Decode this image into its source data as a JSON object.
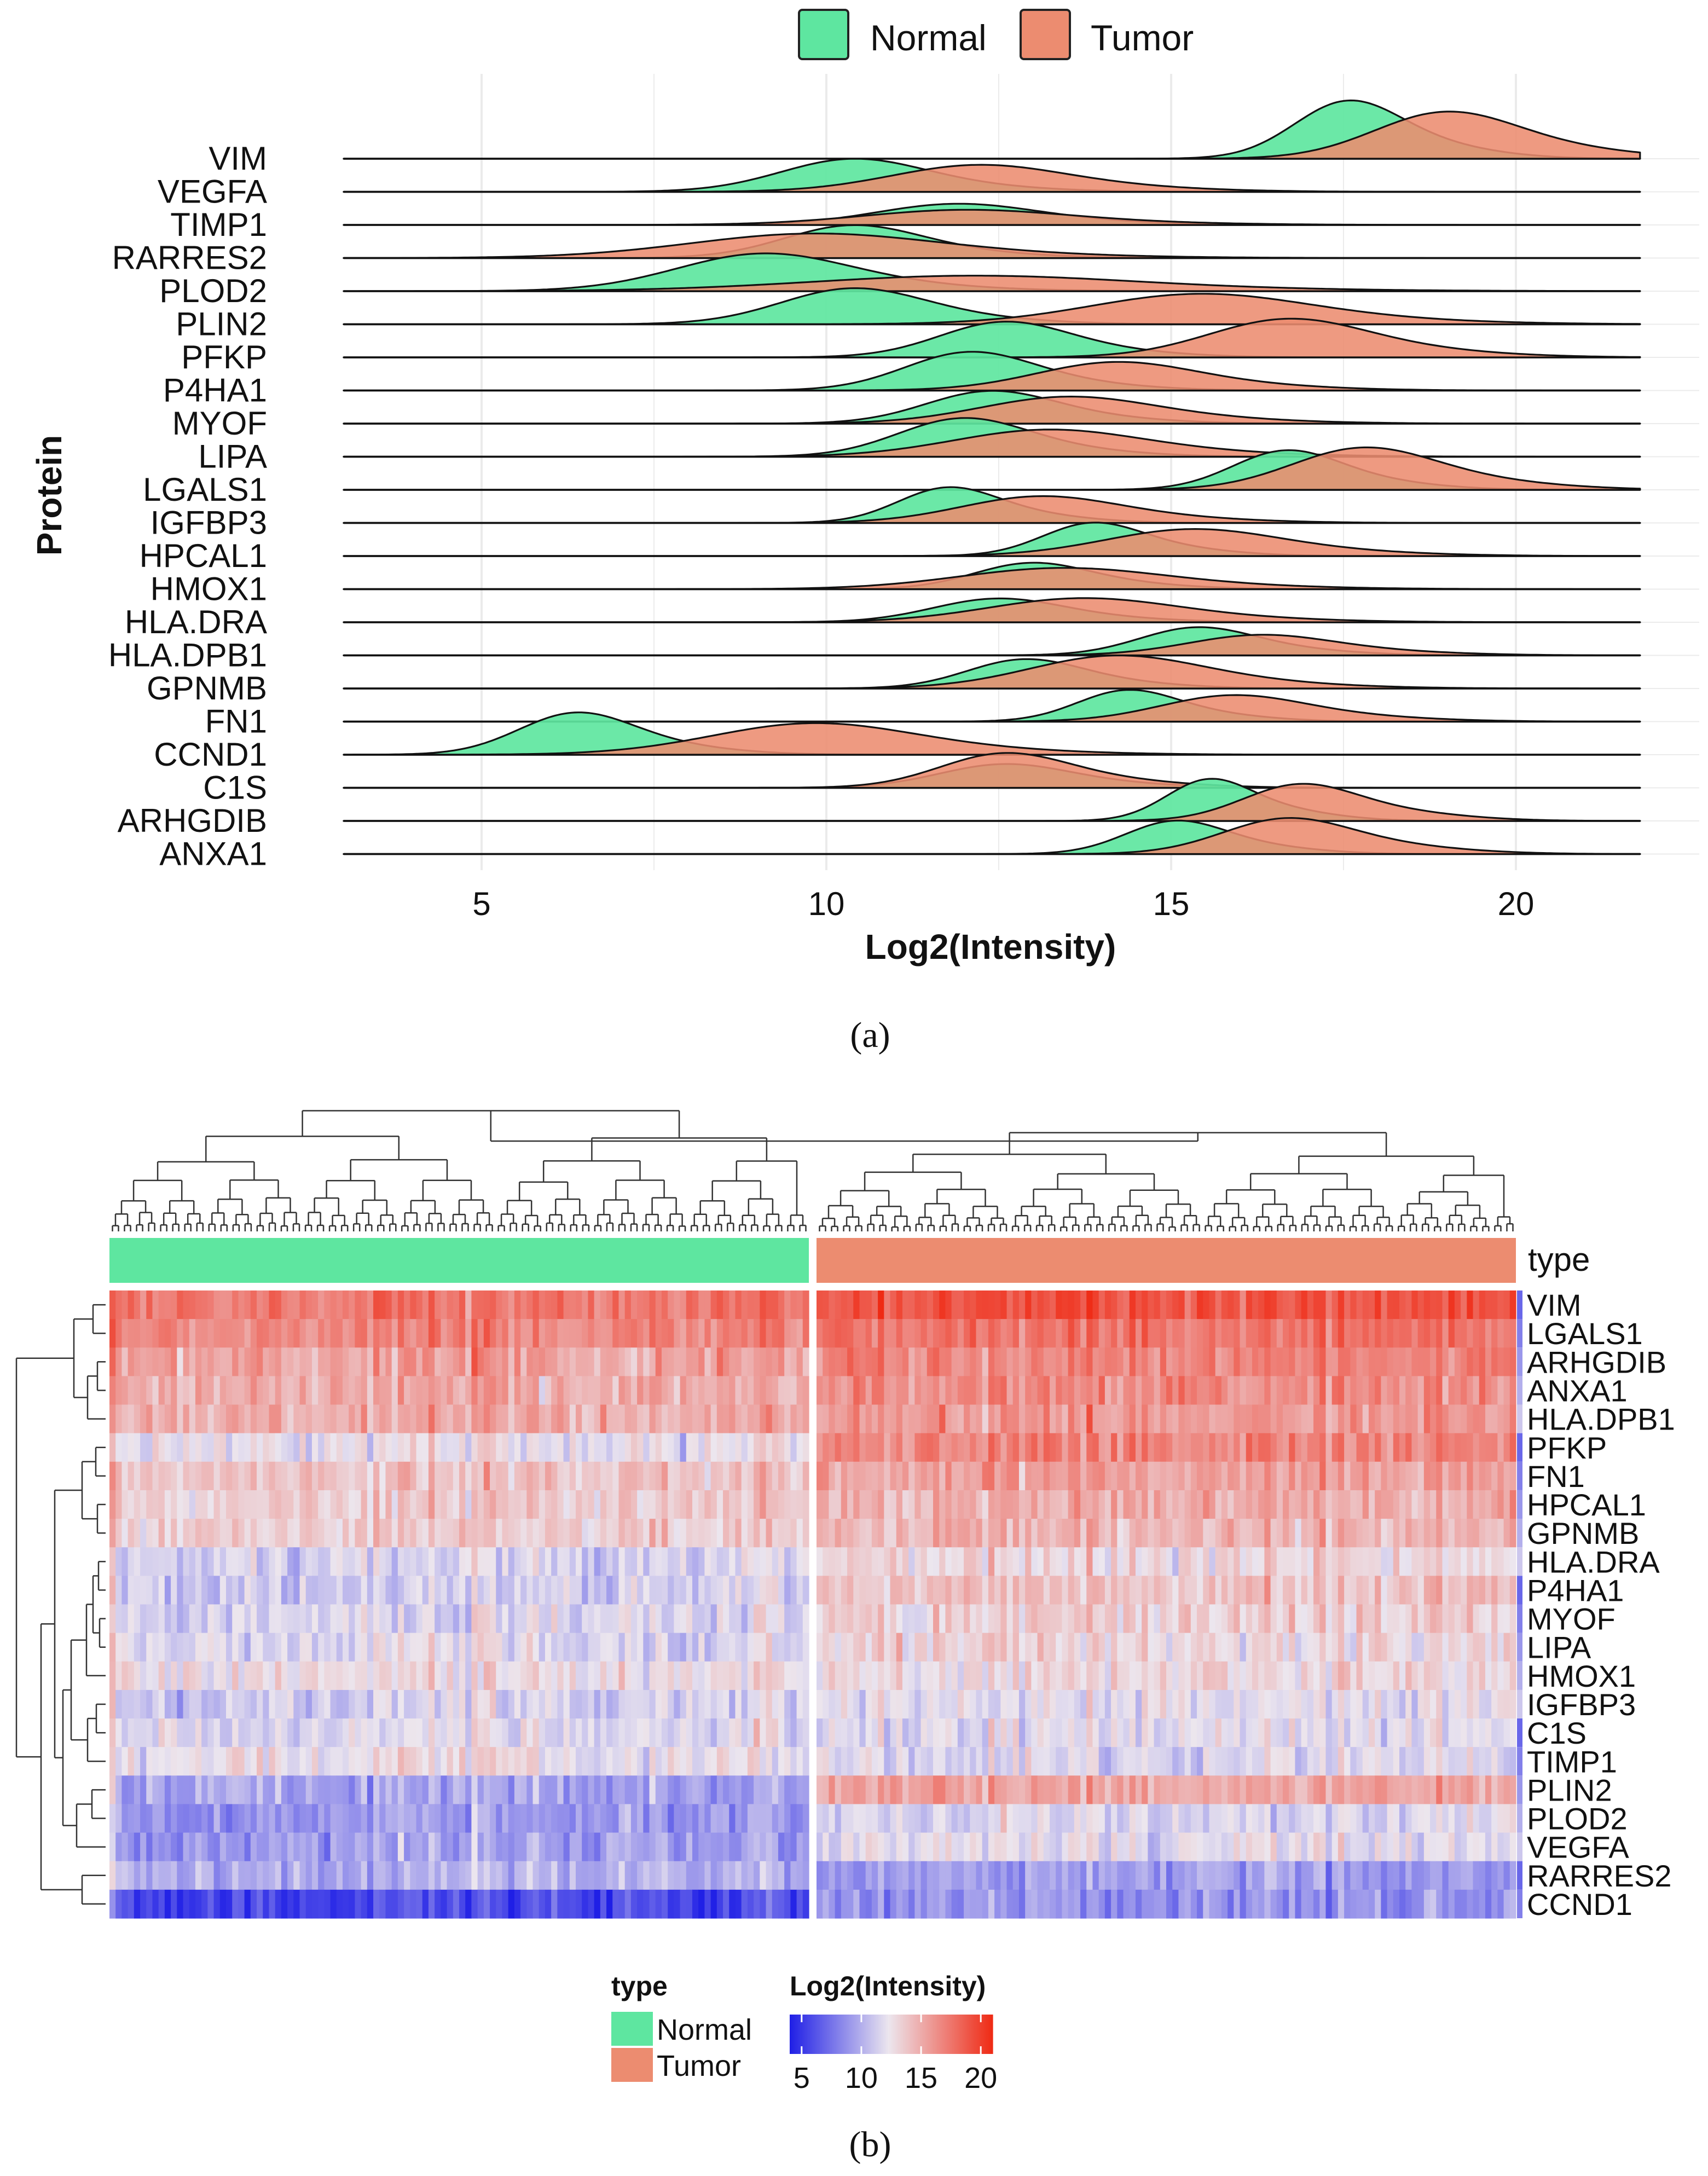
{
  "colors": {
    "normal": "#5ee6a0",
    "tumor": "#ec8c70",
    "heat_low": "#1f1fe6",
    "heat_mid": "#ece6ee",
    "heat_high": "#ef2a14"
  },
  "legend_top": {
    "items": [
      "Normal",
      "Tumor"
    ]
  },
  "chart_data": [
    {
      "type": "ridgeline",
      "caption": "(a)",
      "xlabel": "Log2(Intensity)",
      "ylabel": "Protein",
      "xlim": [
        3,
        21.8
      ],
      "xticks": [
        "5",
        "10",
        "15",
        "20"
      ],
      "xtick_values": [
        5,
        10,
        15,
        20
      ],
      "grid": true,
      "legend": "top-center",
      "proteins": [
        "VIM",
        "VEGFA",
        "TIMP1",
        "RARRES2",
        "PLOD2",
        "PLIN2",
        "PFKP",
        "P4HA1",
        "MYOF",
        "LIPA",
        "LGALS1",
        "IGFBP3",
        "HPCAL1",
        "HMOX1",
        "HLA.DRA",
        "HLA.DPB1",
        "GPNMB",
        "FN1",
        "CCND1",
        "C1S",
        "ARHGDIB",
        "ANXA1"
      ],
      "series": [
        {
          "name": "Normal",
          "peaks": [
            [
              17.5,
              0.75,
              1.0
            ],
            [
              10.3,
              1.0,
              0.55
            ],
            [
              11.8,
              1.1,
              0.35
            ],
            [
              10.3,
              0.95,
              0.55
            ],
            [
              9.0,
              1.2,
              0.62
            ],
            [
              10.3,
              1.0,
              0.6
            ],
            [
              12.5,
              0.9,
              0.6
            ],
            [
              12.0,
              0.9,
              0.65
            ],
            [
              12.3,
              0.9,
              0.55
            ],
            [
              11.9,
              0.9,
              0.65
            ],
            [
              16.6,
              0.75,
              0.68
            ],
            [
              11.7,
              0.7,
              0.62
            ],
            [
              13.8,
              0.7,
              0.58
            ],
            [
              12.9,
              0.8,
              0.45
            ],
            [
              12.4,
              0.9,
              0.4
            ],
            [
              15.3,
              0.8,
              0.48
            ],
            [
              12.8,
              0.8,
              0.5
            ],
            [
              14.3,
              0.7,
              0.55
            ],
            [
              6.3,
              0.8,
              0.72
            ],
            [
              12.5,
              0.9,
              0.4
            ],
            [
              15.5,
              0.6,
              0.75
            ],
            [
              15.0,
              0.7,
              0.58
            ]
          ]
        },
        {
          "name": "Tumor",
          "peaks": [
            [
              18.9,
              1.0,
              0.8
            ],
            [
              12.1,
              1.2,
              0.45
            ],
            [
              11.9,
              1.4,
              0.25
            ],
            [
              9.7,
              1.7,
              0.4
            ],
            [
              12.0,
              2.2,
              0.25
            ],
            [
              15.3,
              1.5,
              0.5
            ],
            [
              16.6,
              1.1,
              0.65
            ],
            [
              14.1,
              1.1,
              0.48
            ],
            [
              13.4,
              1.2,
              0.45
            ],
            [
              13.1,
              1.3,
              0.45
            ],
            [
              17.7,
              1.0,
              0.72
            ],
            [
              13.0,
              1.1,
              0.45
            ],
            [
              15.2,
              1.2,
              0.45
            ],
            [
              13.3,
              1.4,
              0.35
            ],
            [
              13.6,
              1.3,
              0.4
            ],
            [
              16.2,
              1.0,
              0.35
            ],
            [
              14.1,
              1.2,
              0.55
            ],
            [
              15.8,
              1.0,
              0.45
            ],
            [
              9.7,
              1.4,
              0.52
            ],
            [
              12.5,
              0.9,
              0.6
            ],
            [
              16.8,
              0.8,
              0.65
            ],
            [
              16.6,
              0.9,
              0.62
            ]
          ]
        }
      ]
    },
    {
      "type": "heatmap",
      "caption": "(b)",
      "annotation_label": "type",
      "rows": [
        "VIM",
        "LGALS1",
        "ARHGDIB",
        "ANXA1",
        "HLA.DPB1",
        "PFKP",
        "FN1",
        "HPCAL1",
        "GPNMB",
        "HLA.DRA",
        "P4HA1",
        "MYOF",
        "LIPA",
        "HMOX1",
        "IGFBP3",
        "C1S",
        "TIMP1",
        "PLIN2",
        "PLOD2",
        "VEGFA",
        "RARRES2",
        "CCND1"
      ],
      "groups": [
        {
          "name": "Normal",
          "columns": 114
        },
        {
          "name": "Tumor",
          "columns": 114
        }
      ],
      "row_means": {
        "Normal": [
          17.3,
          16.8,
          15.6,
          15.1,
          15.0,
          12.3,
          14.0,
          13.5,
          13.6,
          11.5,
          11.3,
          11.6,
          11.8,
          12.7,
          11.3,
          11.8,
          12.4,
          9.6,
          9.0,
          9.3,
          10.1,
          5.8
        ],
        "Tumor": [
          19.0,
          17.6,
          17.0,
          16.6,
          16.0,
          16.8,
          15.6,
          15.0,
          14.6,
          13.1,
          14.0,
          13.4,
          13.0,
          12.9,
          12.0,
          11.9,
          11.8,
          15.3,
          11.6,
          12.1,
          9.2,
          8.8
        ]
      },
      "legend": {
        "type_title": "type",
        "type_items": [
          "Normal",
          "Tumor"
        ],
        "scale_title": "Log2(Intensity)",
        "scale_ticks": [
          "5",
          "10",
          "15",
          "20"
        ],
        "scale_values": [
          5,
          10,
          15,
          20
        ],
        "scale_range": [
          4,
          21
        ]
      }
    }
  ]
}
